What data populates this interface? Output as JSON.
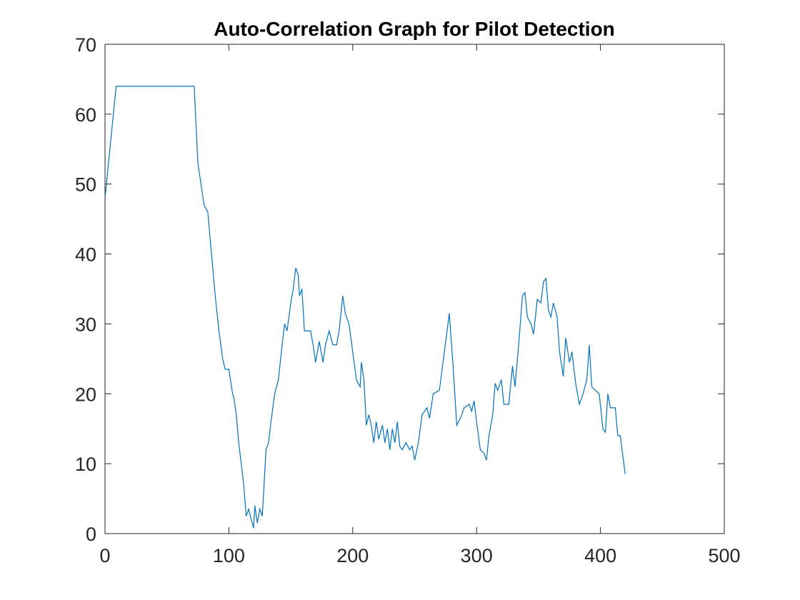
{
  "chart_data": {
    "type": "line",
    "title": "Auto-Correlation Graph for Pilot Detection",
    "x": [
      0,
      9,
      72,
      75,
      80,
      83,
      86,
      89,
      92,
      95,
      97,
      100,
      103,
      104,
      106,
      108,
      110,
      112,
      114,
      116,
      118,
      120,
      121,
      123,
      125,
      127,
      130,
      132,
      134,
      137,
      140,
      143,
      145,
      147,
      150,
      152,
      154,
      156,
      157,
      159,
      161,
      166,
      168,
      170,
      173,
      176,
      178,
      181,
      184,
      187,
      189,
      192,
      194,
      197,
      200,
      203,
      206,
      207,
      209,
      211,
      213,
      215,
      217,
      219,
      221,
      224,
      226,
      228,
      230,
      232,
      234,
      236,
      238,
      240,
      243,
      246,
      248,
      250,
      253,
      256,
      260,
      262,
      265,
      270,
      274,
      278,
      281,
      284,
      287,
      290,
      294,
      296,
      298,
      300,
      303,
      306,
      308,
      310,
      313,
      315,
      317,
      320,
      322,
      326,
      329,
      331,
      334,
      337,
      339,
      341,
      344,
      346,
      349,
      352,
      354,
      356,
      358,
      360,
      362,
      365,
      367,
      370,
      372,
      375,
      377,
      380,
      383,
      386,
      389,
      391,
      393,
      396,
      399,
      402,
      404,
      406,
      408,
      412,
      414,
      416,
      420
    ],
    "series": [
      {
        "name": "autocorrelation",
        "color": "#0072bd",
        "values": [
          48,
          64,
          64,
          53,
          47,
          46,
          40,
          34,
          29,
          25,
          23.5,
          23.5,
          20,
          19.5,
          17,
          13,
          10,
          7,
          2.5,
          3.5,
          2,
          0.8,
          4,
          1.5,
          3.5,
          2.5,
          12,
          13,
          16,
          20,
          22,
          27,
          30,
          29,
          33,
          35,
          38,
          37,
          34,
          35,
          29,
          29,
          27,
          24.5,
          27.5,
          24.5,
          27,
          29,
          27,
          27,
          29,
          34,
          31.5,
          30,
          26,
          22,
          21,
          24.5,
          22,
          15.5,
          17,
          15.5,
          13,
          16,
          13.5,
          15.5,
          13,
          15,
          12,
          15,
          13,
          16,
          12.5,
          12,
          13,
          12,
          12.5,
          10.5,
          13,
          17,
          18,
          16.5,
          20,
          20.5,
          26,
          31.5,
          24,
          15.5,
          16.5,
          18,
          18.5,
          17.5,
          19,
          16,
          12,
          11.5,
          10.5,
          14,
          17,
          21.5,
          20.5,
          22,
          18.5,
          18.5,
          24,
          21,
          27,
          34,
          34.5,
          31,
          30,
          28.5,
          33.5,
          33,
          36,
          36.5,
          32,
          31,
          33,
          31,
          26,
          22.5,
          28,
          24.5,
          26,
          21.5,
          18.5,
          20,
          22,
          27,
          21,
          20.5,
          20,
          15,
          14.5,
          20,
          18,
          18,
          14,
          14,
          8.5
        ]
      }
    ],
    "xlim": [
      0,
      500
    ],
    "xticks": [
      0,
      100,
      200,
      300,
      400,
      500
    ],
    "ylim": [
      0,
      70
    ],
    "yticks": [
      0,
      10,
      20,
      30,
      40,
      50,
      60,
      70
    ]
  }
}
